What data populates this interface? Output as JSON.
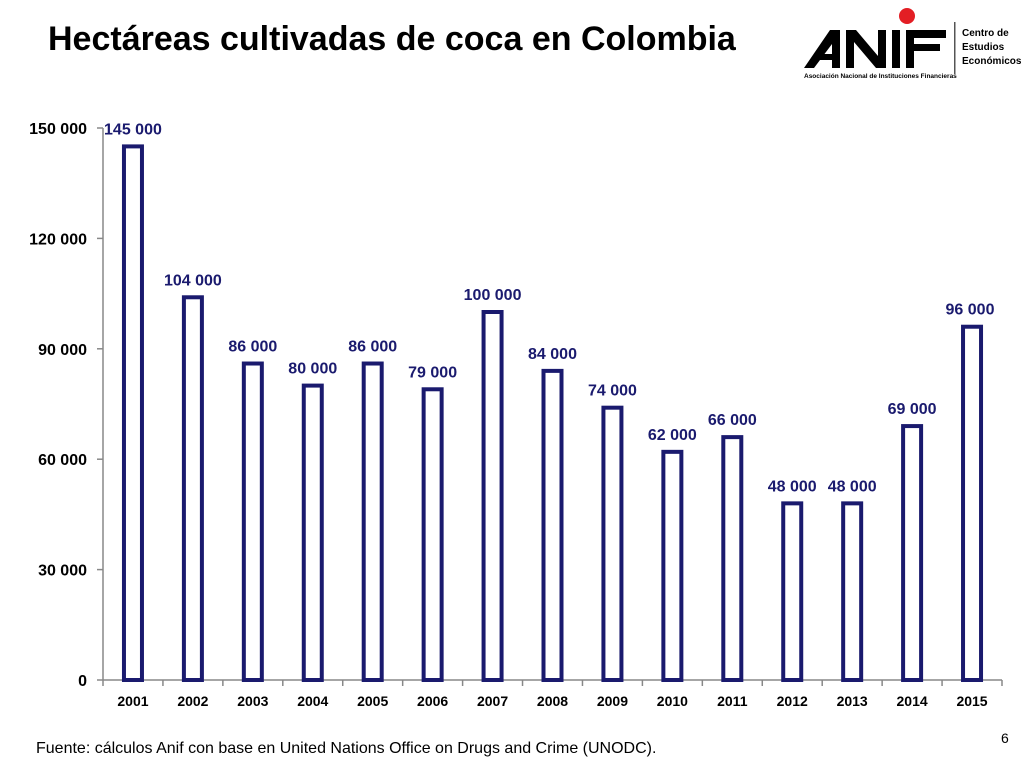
{
  "title": "Hectáreas cultivadas de coca en Colombia",
  "logo": {
    "name": "ANIF",
    "subtitle": "Asociación Nacional de Instituciones Financieras",
    "side_text": [
      "Centro de",
      "Estudios",
      "Económicos"
    ],
    "accent_color": "#e31e24"
  },
  "source": "Fuente: cálculos Anif con base en United Nations Office on Drugs and Crime (UNODC).",
  "page_number": "6",
  "colors": {
    "bar_stroke": "#1a1a6e",
    "bar_fill": "#ffffff",
    "label": "#1a1a6e"
  },
  "chart_data": {
    "type": "bar",
    "categories": [
      "2001",
      "2002",
      "2003",
      "2004",
      "2005",
      "2006",
      "2007",
      "2008",
      "2009",
      "2010",
      "2011",
      "2012",
      "2013",
      "2014",
      "2015"
    ],
    "values": [
      145000,
      104000,
      86000,
      80000,
      86000,
      79000,
      100000,
      84000,
      74000,
      62000,
      66000,
      48000,
      48000,
      69000,
      96000
    ],
    "data_labels": [
      "145 000",
      "104 000",
      "86 000",
      "80 000",
      "86 000",
      "79 000",
      "100 000",
      "84 000",
      "74 000",
      "62 000",
      "66 000",
      "48 000",
      "48 000",
      "69 000",
      "96 000"
    ],
    "ylim": [
      0,
      150000
    ],
    "yticks": [
      0,
      30000,
      60000,
      90000,
      120000,
      150000
    ],
    "ytick_labels": [
      "0",
      "30 000",
      "60 000",
      "90 000",
      "120 000",
      "150 000"
    ],
    "grid": false,
    "legend": "none",
    "title": "Hectáreas cultivadas de coca en Colombia",
    "xlabel": "",
    "ylabel": ""
  }
}
